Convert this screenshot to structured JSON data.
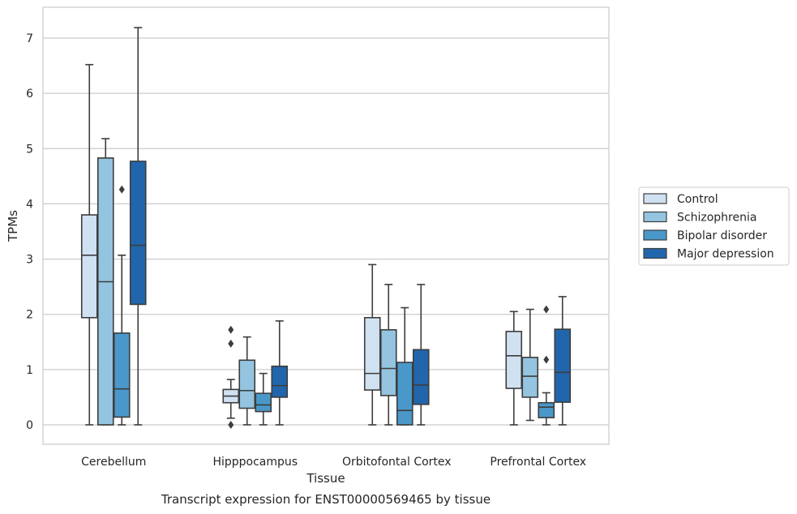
{
  "chart_data": {
    "type": "box",
    "title": "",
    "caption": "Transcript expression for ENST00000569465 by tissue",
    "xlabel": "Tissue",
    "ylabel": "TPMs",
    "ylim": [
      -0.35,
      7.55
    ],
    "yticks": [
      0,
      1,
      2,
      3,
      4,
      5,
      6,
      7
    ],
    "grid": "horizontal",
    "legend_position": "right",
    "categories": [
      "Cerebellum",
      "Hipppocampus",
      "Orbitofontal Cortex",
      "Prefrontal Cortex"
    ],
    "series": [
      {
        "name": "Control",
        "color": "#d0e1f2",
        "boxes": [
          {
            "whislo": 0.0,
            "q1": 1.94,
            "median": 3.07,
            "q3": 3.8,
            "whishi": 6.52,
            "fliers": []
          },
          {
            "whislo": 0.12,
            "q1": 0.4,
            "median": 0.52,
            "q3": 0.64,
            "whishi": 0.82,
            "fliers": [
              1.72,
              1.47,
              0.0
            ]
          },
          {
            "whislo": 0.0,
            "q1": 0.63,
            "median": 0.93,
            "q3": 1.94,
            "whishi": 2.9,
            "fliers": []
          },
          {
            "whislo": 0.0,
            "q1": 0.66,
            "median": 1.25,
            "q3": 1.69,
            "whishi": 2.05,
            "fliers": []
          }
        ]
      },
      {
        "name": "Schizophrenia",
        "color": "#94c4df",
        "boxes": [
          {
            "whislo": 0.0,
            "q1": 0.0,
            "median": 2.59,
            "q3": 4.83,
            "whishi": 5.18,
            "fliers": []
          },
          {
            "whislo": 0.0,
            "q1": 0.3,
            "median": 0.62,
            "q3": 1.17,
            "whishi": 1.59,
            "fliers": []
          },
          {
            "whislo": 0.0,
            "q1": 0.53,
            "median": 1.02,
            "q3": 1.72,
            "whishi": 2.54,
            "fliers": []
          },
          {
            "whislo": 0.08,
            "q1": 0.5,
            "median": 0.88,
            "q3": 1.22,
            "whishi": 2.09,
            "fliers": []
          }
        ]
      },
      {
        "name": "Bipolar disorder",
        "color": "#4a98c9",
        "boxes": [
          {
            "whislo": 0.0,
            "q1": 0.14,
            "median": 0.65,
            "q3": 1.66,
            "whishi": 3.07,
            "fliers": [
              4.26
            ]
          },
          {
            "whislo": 0.0,
            "q1": 0.24,
            "median": 0.36,
            "q3": 0.57,
            "whishi": 0.93,
            "fliers": []
          },
          {
            "whislo": 0.0,
            "q1": 0.0,
            "median": 0.26,
            "q3": 1.13,
            "whishi": 2.12,
            "fliers": []
          },
          {
            "whislo": 0.0,
            "q1": 0.13,
            "median": 0.32,
            "q3": 0.4,
            "whishi": 0.58,
            "fliers": [
              2.09,
              1.18
            ]
          }
        ]
      },
      {
        "name": "Major depression",
        "color": "#2166ac",
        "boxes": [
          {
            "whislo": 0.0,
            "q1": 2.18,
            "median": 3.25,
            "q3": 4.77,
            "whishi": 7.19,
            "fliers": []
          },
          {
            "whislo": 0.0,
            "q1": 0.5,
            "median": 0.71,
            "q3": 1.06,
            "whishi": 1.88,
            "fliers": []
          },
          {
            "whislo": 0.0,
            "q1": 0.37,
            "median": 0.72,
            "q3": 1.36,
            "whishi": 2.54,
            "fliers": []
          },
          {
            "whislo": 0.0,
            "q1": 0.41,
            "median": 0.95,
            "q3": 1.73,
            "whishi": 2.32,
            "fliers": []
          }
        ]
      }
    ]
  }
}
